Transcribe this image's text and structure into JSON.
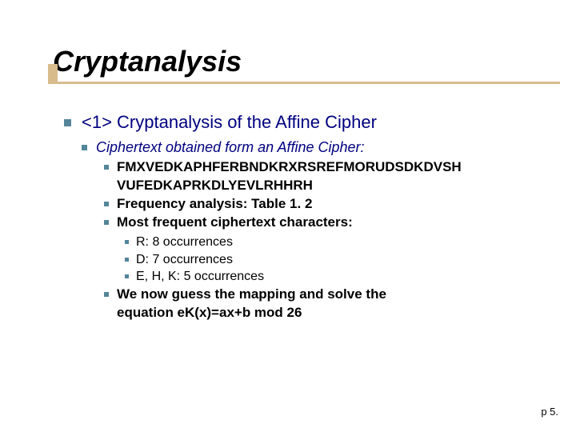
{
  "colors": {
    "accent_bar": "#d8bc8c",
    "bullet": "#548599",
    "title_text": "#000000",
    "lvl1_text": "#000080",
    "lvl2_text": "#000080",
    "lvl3_text": "#000000",
    "lvl4_text": "#000000",
    "background": "#ffffff"
  },
  "fonts": {
    "title_size_pt": 36,
    "lvl1_size_pt": 22,
    "lvl2_size_pt": 18,
    "lvl3_size_pt": 17,
    "lvl4_size_pt": 16
  },
  "title": "Cryptanalysis",
  "lvl1": {
    "item0": "<1> Cryptanalysis of the Affine Cipher"
  },
  "lvl2": {
    "item0": "Ciphertext obtained form an Affine Cipher:"
  },
  "lvl3": {
    "item0a": "FMXVEDKAPHFERBNDKRXRSREFMORUDSDKDVSH",
    "item0b": "VUFEDKAPRKDLYEVLRHHRH",
    "item1": "Frequency analysis: Table 1. 2",
    "item2": "Most frequent ciphertext characters:",
    "item3a": "We now guess the mapping and solve the",
    "item3b": "equation eK(x)=ax+b mod 26"
  },
  "lvl4": {
    "item0": "R: 8 occurrences",
    "item1": "D: 7 occurrences",
    "item2": "E, H, K: 5 occurrences"
  },
  "footer": "p 5."
}
